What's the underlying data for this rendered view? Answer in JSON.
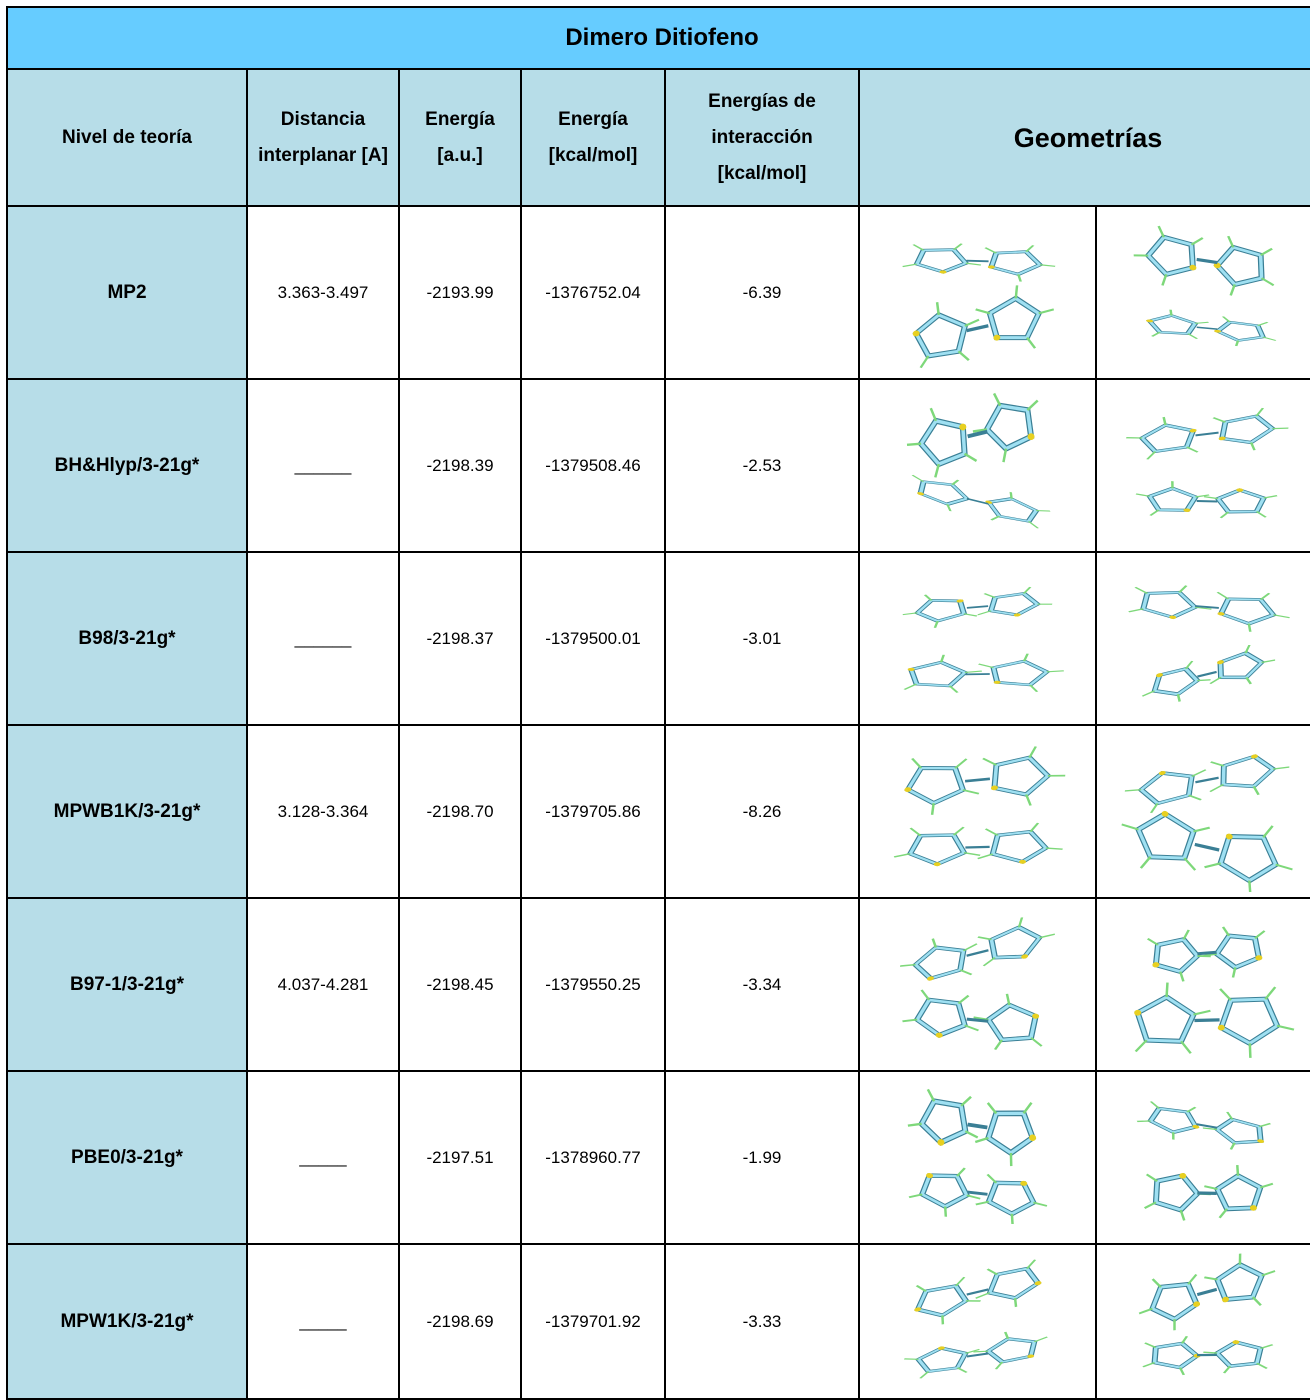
{
  "header": {
    "title": "Dimero Ditiofeno"
  },
  "table": {
    "columns": [
      "Nivel de teoría",
      "Distancia interplanar [A]",
      "Energía [a.u.]",
      "Energía [kcal/mol]",
      "Energías de interacción [kcal/mol]",
      "Geometrías"
    ],
    "rows": [
      [
        "MP2",
        "3.363-3.497",
        "-2193.99",
        "-1376752.04",
        "-6.39"
      ],
      [
        "BH&Hlyp/3-21g*",
        "______",
        "-2198.39",
        "-1379508.46",
        "-2.53"
      ],
      [
        "B98/3-21g*",
        "______",
        "-2198.37",
        "-1379500.01",
        "-3.01"
      ],
      [
        "MPWB1K/3-21g*",
        "3.128-3.364",
        "-2198.70",
        "-1379705.86",
        "-8.26"
      ],
      [
        "B97-1/3-21g*",
        "4.037-4.281",
        "-2198.45",
        "-1379550.25",
        "-3.34"
      ],
      [
        "PBE0/3-21g*",
        "_____",
        "-2197.51",
        "-1378960.77",
        "-1.99"
      ],
      [
        "MPW1K/3-21g*",
        "_____",
        "-2198.69",
        "-1379701.92",
        "-3.33"
      ]
    ]
  }
}
